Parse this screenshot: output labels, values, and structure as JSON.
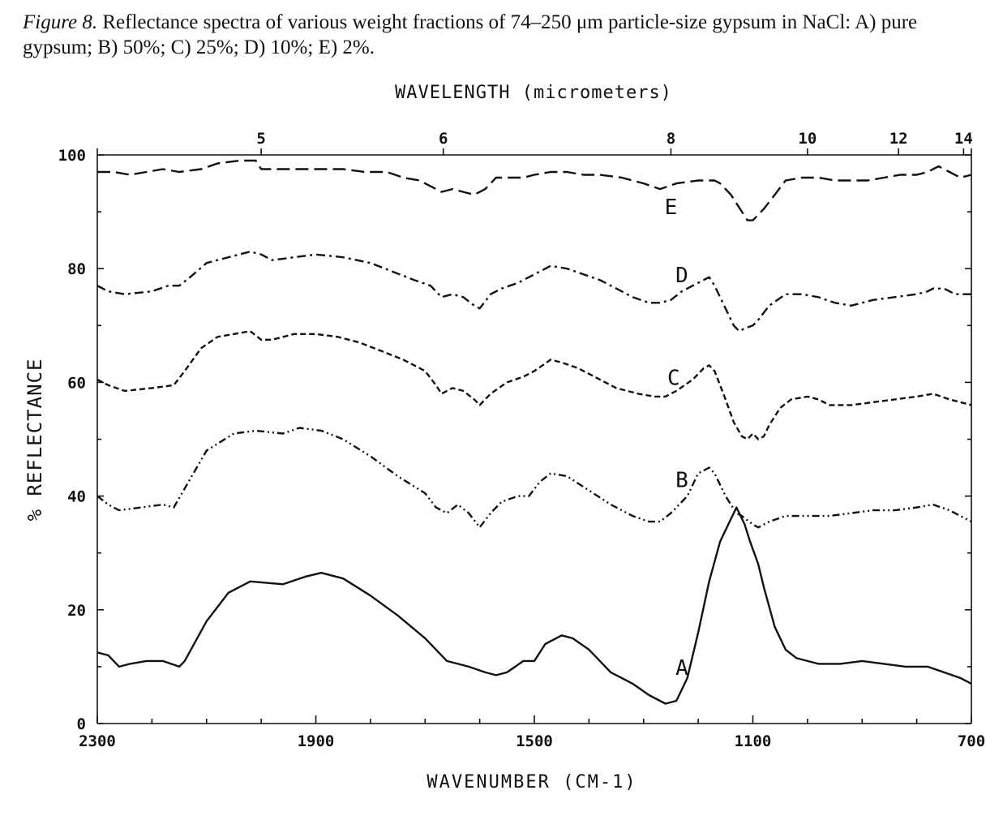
{
  "caption": {
    "label": "Figure 8.",
    "text": "Reflectance spectra of various weight fractions of 74–250 μm particle-size gypsum in NaCl: A) pure gypsum; B) 50%; C) 25%; D) 10%; E) 2%."
  },
  "chart_data": {
    "type": "line",
    "title": "",
    "xlabel": "WAVENUMBER (CM-1)",
    "ylabel": "% REFLECTANCE",
    "top_axis_label": "WAVELENGTH (micrometers)",
    "xlim": [
      2300,
      700
    ],
    "ylim": [
      0,
      100
    ],
    "x_ticks": [
      "2300",
      "1900",
      "1500",
      "1100",
      "700"
    ],
    "y_ticks": [
      "0",
      "20",
      "40",
      "60",
      "80",
      "100"
    ],
    "top_ticks": [
      {
        "label": "5",
        "wavelength_um": 5
      },
      {
        "label": "6",
        "wavelength_um": 6
      },
      {
        "label": "8",
        "wavelength_um": 8
      },
      {
        "label": "10",
        "wavelength_um": 10
      },
      {
        "label": "12",
        "wavelength_um": 12
      },
      {
        "label": "14",
        "wavelength_um": 14
      }
    ],
    "grid": false,
    "legend": "none (curve letters labeled inline)",
    "series": [
      {
        "name": "A",
        "style": "solid",
        "label_at": [
          1230,
          10
        ],
        "points": [
          [
            2300,
            12.5
          ],
          [
            2280,
            12
          ],
          [
            2260,
            10
          ],
          [
            2240,
            10.5
          ],
          [
            2210,
            11
          ],
          [
            2180,
            11
          ],
          [
            2150,
            10
          ],
          [
            2140,
            11
          ],
          [
            2100,
            18
          ],
          [
            2060,
            23
          ],
          [
            2020,
            25
          ],
          [
            1960,
            24.5
          ],
          [
            1920,
            25.8
          ],
          [
            1890,
            26.5
          ],
          [
            1850,
            25.5
          ],
          [
            1800,
            22.5
          ],
          [
            1750,
            19
          ],
          [
            1700,
            15
          ],
          [
            1660,
            11
          ],
          [
            1620,
            10
          ],
          [
            1590,
            9
          ],
          [
            1570,
            8.5
          ],
          [
            1550,
            9
          ],
          [
            1520,
            11
          ],
          [
            1500,
            11
          ],
          [
            1480,
            14
          ],
          [
            1450,
            15.5
          ],
          [
            1430,
            15
          ],
          [
            1400,
            13
          ],
          [
            1360,
            9
          ],
          [
            1320,
            7
          ],
          [
            1290,
            5
          ],
          [
            1270,
            4
          ],
          [
            1260,
            3.5
          ],
          [
            1240,
            4
          ],
          [
            1220,
            8
          ],
          [
            1200,
            16
          ],
          [
            1180,
            25
          ],
          [
            1160,
            32
          ],
          [
            1140,
            36
          ],
          [
            1130,
            38
          ],
          [
            1115,
            35
          ],
          [
            1105,
            32
          ],
          [
            1090,
            28
          ],
          [
            1080,
            24
          ],
          [
            1060,
            17
          ],
          [
            1040,
            13
          ],
          [
            1020,
            11.5
          ],
          [
            980,
            10.5
          ],
          [
            940,
            10.5
          ],
          [
            900,
            11
          ],
          [
            860,
            10.5
          ],
          [
            820,
            10
          ],
          [
            780,
            10
          ],
          [
            750,
            9
          ],
          [
            720,
            8
          ],
          [
            700,
            7
          ]
        ]
      },
      {
        "name": "B",
        "style": "dash-dot-dot",
        "label_at": [
          1230,
          43
        ],
        "points": [
          [
            2300,
            40
          ],
          [
            2280,
            38.5
          ],
          [
            2260,
            37.5
          ],
          [
            2220,
            38
          ],
          [
            2180,
            38.5
          ],
          [
            2160,
            38
          ],
          [
            2130,
            43
          ],
          [
            2100,
            48
          ],
          [
            2050,
            51
          ],
          [
            2010,
            51.5
          ],
          [
            1960,
            51
          ],
          [
            1930,
            52
          ],
          [
            1890,
            51.5
          ],
          [
            1850,
            50
          ],
          [
            1800,
            47
          ],
          [
            1750,
            43.5
          ],
          [
            1700,
            40.5
          ],
          [
            1680,
            38
          ],
          [
            1660,
            37
          ],
          [
            1640,
            38.5
          ],
          [
            1620,
            37
          ],
          [
            1600,
            34.5
          ],
          [
            1580,
            37
          ],
          [
            1560,
            39
          ],
          [
            1530,
            40
          ],
          [
            1510,
            40
          ],
          [
            1490,
            42.5
          ],
          [
            1470,
            44
          ],
          [
            1440,
            43.5
          ],
          [
            1400,
            41
          ],
          [
            1360,
            38.5
          ],
          [
            1320,
            36.5
          ],
          [
            1290,
            35.5
          ],
          [
            1270,
            35.5
          ],
          [
            1250,
            37
          ],
          [
            1220,
            40
          ],
          [
            1200,
            44
          ],
          [
            1180,
            45
          ],
          [
            1170,
            44
          ],
          [
            1150,
            40
          ],
          [
            1130,
            37
          ],
          [
            1120,
            36.5
          ],
          [
            1100,
            35
          ],
          [
            1090,
            34.5
          ],
          [
            1070,
            35.5
          ],
          [
            1040,
            36.5
          ],
          [
            1000,
            36.5
          ],
          [
            960,
            36.5
          ],
          [
            920,
            37
          ],
          [
            880,
            37.5
          ],
          [
            840,
            37.5
          ],
          [
            800,
            38
          ],
          [
            770,
            38.5
          ],
          [
            740,
            37.5
          ],
          [
            720,
            36.5
          ],
          [
            700,
            35.5
          ]
        ]
      },
      {
        "name": "C",
        "style": "short-dash",
        "label_at": [
          1245,
          61
        ],
        "points": [
          [
            2300,
            60.5
          ],
          [
            2280,
            59.5
          ],
          [
            2250,
            58.5
          ],
          [
            2200,
            59
          ],
          [
            2160,
            59.5
          ],
          [
            2140,
            62
          ],
          [
            2110,
            66
          ],
          [
            2080,
            68
          ],
          [
            2050,
            68.5
          ],
          [
            2020,
            69
          ],
          [
            2000,
            67.5
          ],
          [
            1980,
            67.5
          ],
          [
            1940,
            68.5
          ],
          [
            1900,
            68.5
          ],
          [
            1860,
            68
          ],
          [
            1820,
            67
          ],
          [
            1780,
            65.5
          ],
          [
            1740,
            64
          ],
          [
            1700,
            62
          ],
          [
            1680,
            59.5
          ],
          [
            1670,
            58
          ],
          [
            1650,
            59
          ],
          [
            1630,
            58.5
          ],
          [
            1610,
            57
          ],
          [
            1600,
            56
          ],
          [
            1580,
            58
          ],
          [
            1550,
            60
          ],
          [
            1520,
            61
          ],
          [
            1500,
            62
          ],
          [
            1470,
            64
          ],
          [
            1450,
            63.5
          ],
          [
            1420,
            62.5
          ],
          [
            1390,
            61
          ],
          [
            1350,
            59
          ],
          [
            1310,
            58
          ],
          [
            1280,
            57.5
          ],
          [
            1260,
            57.5
          ],
          [
            1240,
            58.5
          ],
          [
            1210,
            60.5
          ],
          [
            1190,
            62.5
          ],
          [
            1180,
            63
          ],
          [
            1170,
            62
          ],
          [
            1150,
            57
          ],
          [
            1135,
            53
          ],
          [
            1120,
            50.5
          ],
          [
            1110,
            50
          ],
          [
            1100,
            51
          ],
          [
            1090,
            50
          ],
          [
            1080,
            50.5
          ],
          [
            1070,
            52.5
          ],
          [
            1050,
            55.5
          ],
          [
            1030,
            57
          ],
          [
            1000,
            57.5
          ],
          [
            980,
            57
          ],
          [
            960,
            56
          ],
          [
            920,
            56
          ],
          [
            880,
            56.5
          ],
          [
            840,
            57
          ],
          [
            800,
            57.5
          ],
          [
            770,
            58
          ],
          [
            740,
            57
          ],
          [
            720,
            56.5
          ],
          [
            700,
            56
          ]
        ]
      },
      {
        "name": "D",
        "style": "dash-dot",
        "label_at": [
          1230,
          79
        ],
        "points": [
          [
            2300,
            77
          ],
          [
            2280,
            76
          ],
          [
            2250,
            75.5
          ],
          [
            2200,
            76
          ],
          [
            2170,
            77
          ],
          [
            2150,
            77
          ],
          [
            2130,
            78.5
          ],
          [
            2100,
            81
          ],
          [
            2060,
            82
          ],
          [
            2040,
            82.5
          ],
          [
            2020,
            83
          ],
          [
            2000,
            82.5
          ],
          [
            1980,
            81.5
          ],
          [
            1940,
            82
          ],
          [
            1900,
            82.5
          ],
          [
            1850,
            82
          ],
          [
            1800,
            81
          ],
          [
            1760,
            79.5
          ],
          [
            1720,
            78
          ],
          [
            1690,
            77
          ],
          [
            1670,
            75
          ],
          [
            1650,
            75.5
          ],
          [
            1630,
            75
          ],
          [
            1610,
            73.5
          ],
          [
            1600,
            73
          ],
          [
            1580,
            75.5
          ],
          [
            1560,
            76.5
          ],
          [
            1530,
            77.5
          ],
          [
            1500,
            79
          ],
          [
            1470,
            80.5
          ],
          [
            1440,
            80
          ],
          [
            1410,
            79
          ],
          [
            1380,
            78
          ],
          [
            1350,
            76.5
          ],
          [
            1320,
            75
          ],
          [
            1290,
            74
          ],
          [
            1270,
            74
          ],
          [
            1250,
            74.5
          ],
          [
            1230,
            76
          ],
          [
            1210,
            77
          ],
          [
            1190,
            78
          ],
          [
            1180,
            78.5
          ],
          [
            1170,
            77
          ],
          [
            1150,
            73
          ],
          [
            1135,
            70
          ],
          [
            1125,
            69
          ],
          [
            1115,
            69.5
          ],
          [
            1100,
            70
          ],
          [
            1090,
            71
          ],
          [
            1070,
            73.5
          ],
          [
            1040,
            75.5
          ],
          [
            1010,
            75.5
          ],
          [
            980,
            75
          ],
          [
            950,
            74
          ],
          [
            920,
            73.5
          ],
          [
            880,
            74.5
          ],
          [
            840,
            75
          ],
          [
            800,
            75.5
          ],
          [
            780,
            76
          ],
          [
            770,
            76.5
          ],
          [
            750,
            76.5
          ],
          [
            730,
            75.5
          ],
          [
            700,
            75.5
          ]
        ]
      },
      {
        "name": "E",
        "style": "long-dash",
        "label_at": [
          1250,
          91
        ],
        "points": [
          [
            2300,
            97
          ],
          [
            2270,
            97
          ],
          [
            2240,
            96.5
          ],
          [
            2210,
            97
          ],
          [
            2180,
            97.5
          ],
          [
            2150,
            97
          ],
          [
            2110,
            97.5
          ],
          [
            2080,
            98.5
          ],
          [
            2040,
            99
          ],
          [
            2010,
            99
          ],
          [
            2000,
            97.5
          ],
          [
            1960,
            97.5
          ],
          [
            1900,
            97.5
          ],
          [
            1850,
            97.5
          ],
          [
            1810,
            97
          ],
          [
            1770,
            97
          ],
          [
            1740,
            96
          ],
          [
            1710,
            95.5
          ],
          [
            1690,
            94.5
          ],
          [
            1670,
            93.5
          ],
          [
            1650,
            94
          ],
          [
            1630,
            93.5
          ],
          [
            1610,
            93
          ],
          [
            1590,
            94
          ],
          [
            1570,
            96
          ],
          [
            1540,
            96
          ],
          [
            1520,
            96
          ],
          [
            1500,
            96.5
          ],
          [
            1470,
            97
          ],
          [
            1440,
            97
          ],
          [
            1410,
            96.5
          ],
          [
            1380,
            96.5
          ],
          [
            1340,
            96
          ],
          [
            1300,
            95
          ],
          [
            1270,
            94
          ],
          [
            1240,
            95
          ],
          [
            1200,
            95.5
          ],
          [
            1170,
            95.5
          ],
          [
            1160,
            95
          ],
          [
            1140,
            93
          ],
          [
            1120,
            90
          ],
          [
            1110,
            88.5
          ],
          [
            1100,
            88.5
          ],
          [
            1080,
            90.5
          ],
          [
            1060,
            93
          ],
          [
            1040,
            95.5
          ],
          [
            1010,
            96
          ],
          [
            980,
            96
          ],
          [
            950,
            95.5
          ],
          [
            920,
            95.5
          ],
          [
            890,
            95.5
          ],
          [
            860,
            96
          ],
          [
            830,
            96.5
          ],
          [
            800,
            96.5
          ],
          [
            780,
            97
          ],
          [
            760,
            98
          ],
          [
            740,
            97
          ],
          [
            720,
            96
          ],
          [
            700,
            96.5
          ]
        ]
      }
    ]
  }
}
